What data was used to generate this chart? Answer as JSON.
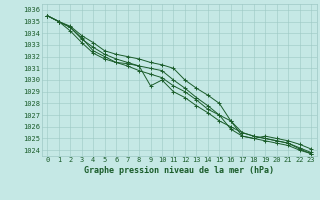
{
  "background_color": "#c5e8e5",
  "grid_color": "#9dc8c4",
  "line_color": "#1a5c2a",
  "title": "Graphe pression niveau de la mer (hPa)",
  "ylabel_values": [
    1024,
    1025,
    1026,
    1027,
    1028,
    1029,
    1030,
    1031,
    1032,
    1033,
    1034,
    1035,
    1036
  ],
  "ylim": [
    1023.5,
    1036.5
  ],
  "xlim": [
    -0.5,
    23.5
  ],
  "xticks": [
    0,
    1,
    2,
    3,
    4,
    5,
    6,
    7,
    8,
    9,
    10,
    11,
    12,
    13,
    14,
    15,
    16,
    17,
    18,
    19,
    20,
    21,
    22,
    23
  ],
  "series": [
    [
      1035.5,
      1035.0,
      1034.5,
      1033.5,
      1032.8,
      1032.2,
      1031.8,
      1031.5,
      1031.2,
      1031.0,
      1030.8,
      1030.0,
      1029.3,
      1028.5,
      1027.8,
      1027.0,
      1026.5,
      1025.5,
      1025.2,
      1025.0,
      1024.8,
      1024.6,
      1024.1,
      1023.7
    ],
    [
      1035.5,
      1035.0,
      1034.5,
      1033.6,
      1032.5,
      1032.0,
      1031.5,
      1031.2,
      1030.8,
      1030.5,
      1030.2,
      1029.5,
      1029.0,
      1028.3,
      1027.5,
      1027.0,
      1025.8,
      1025.2,
      1025.0,
      1024.8,
      1024.6,
      1024.4,
      1024.0,
      1023.7
    ],
    [
      1035.5,
      1035.0,
      1034.2,
      1033.2,
      1032.3,
      1031.8,
      1031.5,
      1031.4,
      1031.2,
      1029.5,
      1030.0,
      1029.0,
      1028.5,
      1027.8,
      1027.2,
      1026.5,
      1026.0,
      1025.5,
      1025.2,
      1025.0,
      1024.8,
      1024.6,
      1024.2,
      1023.8
    ],
    [
      1035.5,
      1035.0,
      1034.6,
      1033.8,
      1033.2,
      1032.5,
      1032.2,
      1032.0,
      1031.8,
      1031.5,
      1031.3,
      1031.0,
      1030.0,
      1029.3,
      1028.7,
      1028.0,
      1026.5,
      1025.2,
      1025.0,
      1025.2,
      1025.0,
      1024.8,
      1024.5,
      1024.1
    ]
  ],
  "tick_fontsize": 5,
  "xlabel_fontsize": 6,
  "linewidth": 0.7,
  "markersize": 2.5,
  "markeredgewidth": 0.7
}
